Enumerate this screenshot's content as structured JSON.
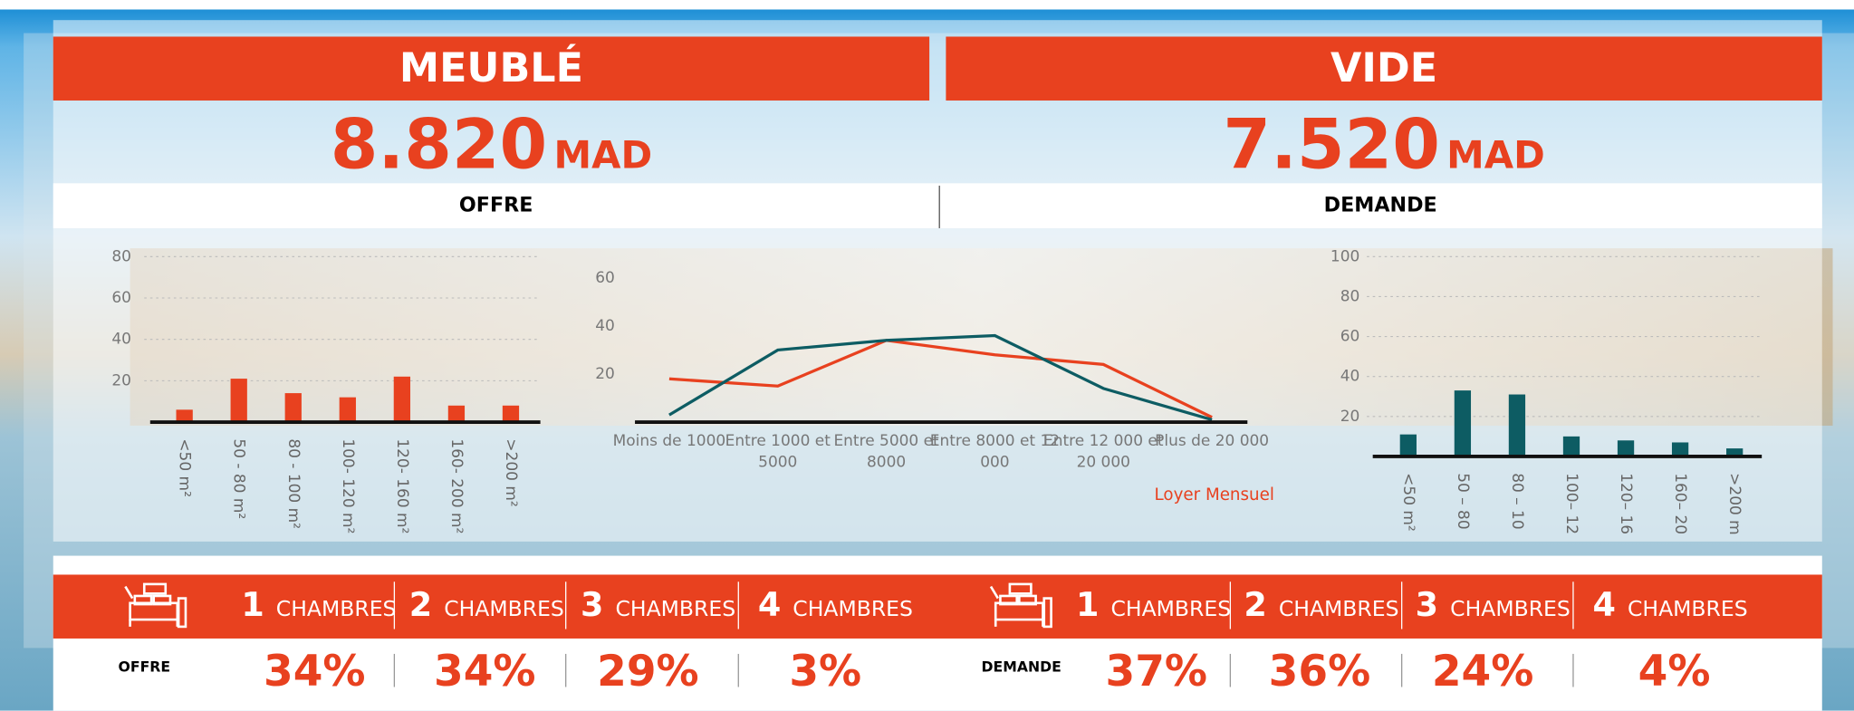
{
  "panels": [
    {
      "title": "MEUBLÉ",
      "price": "8.820",
      "currency": "MAD"
    },
    {
      "title": "VIDE",
      "price": "7.520",
      "currency": "MAD"
    }
  ],
  "sections": [
    "OFFRE",
    "DEMANDE"
  ],
  "chart_data": [
    {
      "type": "bar",
      "categories": [
        "<50 m²",
        "50 - 80 m²",
        "80 - 100 m²",
        "100- 120 m²",
        "120- 160 m²",
        "160- 200 m²",
        ">200 m²"
      ],
      "values": [
        6,
        21,
        14,
        12,
        22,
        8,
        8
      ],
      "color": "#e8411f",
      "ylim": [
        0,
        80
      ],
      "yticks": [
        20,
        40,
        60,
        80
      ],
      "grid": true
    },
    {
      "type": "line",
      "categories": [
        "Moins de 1000",
        "Entre 1000 et 5000",
        "Entre 5000 et 8000",
        "Entre 8000 et 12 000",
        "Entre 12 000 et 20 000",
        "Plus de 20 000"
      ],
      "x_label": "Loyer Mensuel",
      "series": [
        {
          "color": "#e8411f",
          "values": [
            18,
            15,
            34,
            28,
            24,
            2
          ]
        },
        {
          "color": "#0d5c63",
          "values": [
            3,
            30,
            34,
            36,
            14,
            1
          ]
        }
      ],
      "ylim": [
        0,
        60
      ],
      "yticks": [
        20,
        40,
        60
      ],
      "grid": false
    },
    {
      "type": "bar",
      "categories": [
        "<50 m²",
        "50 – 80",
        "80 – 10",
        "100– 12",
        "120– 16",
        "160– 20",
        ">200 m"
      ],
      "values": [
        11,
        33,
        31,
        10,
        8,
        7,
        4
      ],
      "color": "#0d5c63",
      "ylim": [
        0,
        100
      ],
      "yticks": [
        20,
        40,
        60,
        80,
        100
      ],
      "grid": true
    }
  ],
  "rooms": [
    {
      "label": "OFFRE",
      "items": [
        {
          "number": "1",
          "unit": "CHAMBRES",
          "share": "34%"
        },
        {
          "number": "2",
          "unit": "CHAMBRES",
          "share": "34%"
        },
        {
          "number": "3",
          "unit": "CHAMBRES",
          "share": "29%"
        },
        {
          "number": "4",
          "unit": "CHAMBRES",
          "share": "3%"
        }
      ]
    },
    {
      "label": "DEMANDE",
      "items": [
        {
          "number": "1",
          "unit": "CHAMBRES",
          "share": "37%"
        },
        {
          "number": "2",
          "unit": "CHAMBRES",
          "share": "36%"
        },
        {
          "number": "3",
          "unit": "CHAMBRES",
          "share": "24%"
        },
        {
          "number": "4",
          "unit": "CHAMBRES",
          "share": "4%"
        }
      ]
    }
  ]
}
